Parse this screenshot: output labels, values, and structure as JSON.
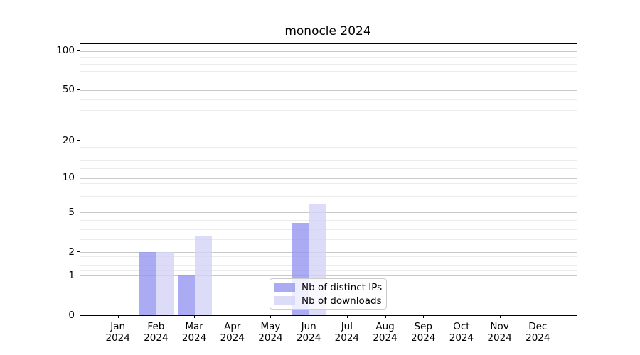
{
  "chart_data": {
    "type": "bar",
    "title": "monocle 2024",
    "year_label": "2024",
    "categories": [
      "Jan",
      "Feb",
      "Mar",
      "Apr",
      "May",
      "Jun",
      "Jul",
      "Aug",
      "Sep",
      "Oct",
      "Nov",
      "Dec"
    ],
    "series": [
      {
        "name": "Nb of distinct IPs",
        "color": "rgba(150,150,240,0.8)",
        "values": [
          0,
          2,
          1,
          0,
          0,
          4,
          0,
          0,
          0,
          0,
          0,
          0
        ]
      },
      {
        "name": "Nb of downloads",
        "color": "rgba(211,211,246,0.8)",
        "values": [
          0,
          2,
          3,
          0,
          0,
          6,
          0,
          0,
          0,
          0,
          0,
          0
        ]
      }
    ],
    "xlabel": "",
    "ylabel": "",
    "yscale": "log1p",
    "ylim": [
      0,
      113
    ],
    "yticks": [
      0,
      1,
      2,
      5,
      10,
      20,
      50,
      100
    ],
    "yticks_minor": [
      1.2,
      1.4,
      1.6,
      1.8,
      2.75,
      3.5,
      4.25,
      6,
      7,
      8,
      9,
      12,
      14,
      16,
      18,
      27.5,
      35,
      42.5,
      60,
      70,
      80,
      90
    ],
    "grid": true,
    "legend_position": "lower center",
    "grid_major_color": "#c9c9c9",
    "grid_minor_color": "#ececec"
  }
}
